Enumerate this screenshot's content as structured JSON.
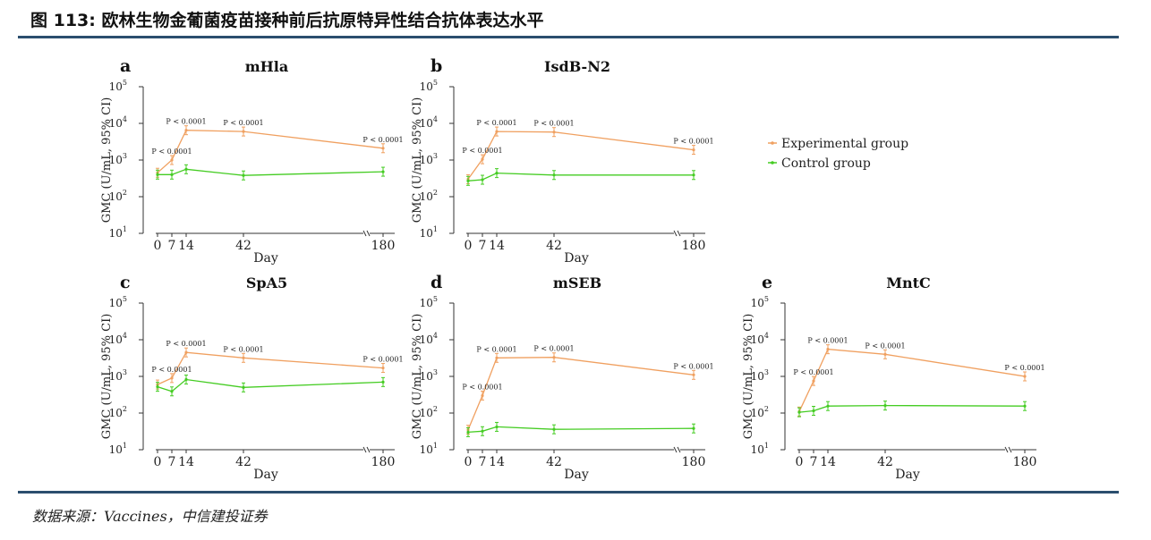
{
  "figure": {
    "title": "图 113: 欧林生物金葡菌疫苗接种前后抗原特异性结合抗体表达水平",
    "source": "数据来源：Vaccines，中信建投证券"
  },
  "legend": {
    "items": [
      {
        "name": "Experimental group",
        "color": "#f0a060"
      },
      {
        "name": "Control group",
        "color": "#44cc22"
      }
    ]
  },
  "chart_data": [
    {
      "type": "line",
      "letter": "a",
      "title": "mHla",
      "xlabel": "Day",
      "ylabel": "GMC (U/mL, 95% CI)",
      "yscale": "log",
      "ylim": [
        10,
        100000
      ],
      "x": [
        0,
        7,
        14,
        42,
        180
      ],
      "xticks": [
        "0",
        "7",
        "14",
        "42",
        "180"
      ],
      "yticks": [
        "10",
        "10",
        "10",
        "10",
        "10"
      ],
      "ytick_exponents": [
        "1",
        "2",
        "3",
        "4",
        "5"
      ],
      "series": [
        {
          "name": "Experimental group",
          "values": [
            450,
            1000,
            6500,
            6000,
            2100
          ]
        },
        {
          "name": "Control group",
          "values": [
            400,
            400,
            560,
            380,
            480
          ]
        }
      ],
      "annotations": [
        {
          "x": 7,
          "y": 1000,
          "text": "P < 0.0001"
        },
        {
          "x": 14,
          "y": 6500,
          "text": "P < 0.0001"
        },
        {
          "x": 42,
          "y": 6000,
          "text": "P < 0.0001"
        },
        {
          "x": 180,
          "y": 2100,
          "text": "P < 0.0001"
        }
      ]
    },
    {
      "type": "line",
      "letter": "b",
      "title": "IsdB-N2",
      "xlabel": "Day",
      "ylabel": "GMC (U/mL, 95% CI)",
      "yscale": "log",
      "ylim": [
        10,
        100000
      ],
      "x": [
        0,
        7,
        14,
        42,
        180
      ],
      "xticks": [
        "0",
        "7",
        "14",
        "42",
        "180"
      ],
      "yticks": [
        "10",
        "10",
        "10",
        "10",
        "10"
      ],
      "ytick_exponents": [
        "1",
        "2",
        "3",
        "4",
        "5"
      ],
      "series": [
        {
          "name": "Experimental group",
          "values": [
            300,
            1050,
            6000,
            5800,
            1900
          ]
        },
        {
          "name": "Control group",
          "values": [
            270,
            290,
            440,
            390,
            390
          ]
        }
      ],
      "annotations": [
        {
          "x": 7,
          "y": 1050,
          "text": "P < 0.0001"
        },
        {
          "x": 14,
          "y": 6000,
          "text": "P < 0.0001"
        },
        {
          "x": 42,
          "y": 5800,
          "text": "P < 0.0001"
        },
        {
          "x": 180,
          "y": 1900,
          "text": "P < 0.0001"
        }
      ]
    },
    {
      "type": "line",
      "letter": "c",
      "title": "SpA5",
      "xlabel": "Day",
      "ylabel": "GMC (U/mL, 95% CI)",
      "yscale": "log",
      "ylim": [
        10,
        100000
      ],
      "x": [
        0,
        7,
        14,
        42,
        180
      ],
      "xticks": [
        "0",
        "7",
        "14",
        "42",
        "180"
      ],
      "yticks": [
        "10",
        "10",
        "10",
        "10",
        "10"
      ],
      "ytick_exponents": [
        "1",
        "2",
        "3",
        "4",
        "5"
      ],
      "series": [
        {
          "name": "Experimental group",
          "values": [
            600,
            900,
            4500,
            3200,
            1700
          ]
        },
        {
          "name": "Control group",
          "values": [
            520,
            390,
            820,
            500,
            700
          ]
        }
      ],
      "annotations": [
        {
          "x": 7,
          "y": 900,
          "text": "P < 0.0001"
        },
        {
          "x": 14,
          "y": 4500,
          "text": "P < 0.0001"
        },
        {
          "x": 42,
          "y": 3200,
          "text": "P < 0.0001"
        },
        {
          "x": 180,
          "y": 1700,
          "text": "P < 0.0001"
        }
      ]
    },
    {
      "type": "line",
      "letter": "d",
      "title": "mSEB",
      "xlabel": "Day",
      "ylabel": "GMC (U/mL, 95% CI)",
      "yscale": "log",
      "ylim": [
        10,
        100000
      ],
      "x": [
        0,
        7,
        14,
        42,
        180
      ],
      "xticks": [
        "0",
        "7",
        "14",
        "42",
        "180"
      ],
      "yticks": [
        "10",
        "10",
        "10",
        "10",
        "10"
      ],
      "ytick_exponents": [
        "1",
        "2",
        "3",
        "4",
        "5"
      ],
      "series": [
        {
          "name": "Experimental group",
          "values": [
            35,
            300,
            3200,
            3300,
            1100
          ]
        },
        {
          "name": "Control group",
          "values": [
            30,
            32,
            42,
            36,
            38
          ]
        }
      ],
      "annotations": [
        {
          "x": 7,
          "y": 300,
          "text": "P < 0.0001"
        },
        {
          "x": 14,
          "y": 3200,
          "text": "P < 0.0001"
        },
        {
          "x": 42,
          "y": 3300,
          "text": "P < 0.0001"
        },
        {
          "x": 180,
          "y": 1100,
          "text": "P < 0.0001"
        }
      ]
    },
    {
      "type": "line",
      "letter": "e",
      "title": "MntC",
      "xlabel": "Day",
      "ylabel": "GMC (U/mL, 95% CI)",
      "yscale": "log",
      "ylim": [
        10,
        100000
      ],
      "x": [
        0,
        7,
        14,
        42,
        180
      ],
      "xticks": [
        "0",
        "7",
        "14",
        "42",
        "180"
      ],
      "yticks": [
        "10",
        "10",
        "10",
        "10",
        "10"
      ],
      "ytick_exponents": [
        "1",
        "2",
        "3",
        "4",
        "5"
      ],
      "series": [
        {
          "name": "Experimental group",
          "values": [
            110,
            750,
            5500,
            4000,
            1000
          ]
        },
        {
          "name": "Control group",
          "values": [
            105,
            115,
            155,
            160,
            155
          ]
        }
      ],
      "annotations": [
        {
          "x": 7,
          "y": 750,
          "text": "P < 0.0001"
        },
        {
          "x": 14,
          "y": 5500,
          "text": "P < 0.0001"
        },
        {
          "x": 42,
          "y": 4000,
          "text": "P < 0.0001"
        },
        {
          "x": 180,
          "y": 1000,
          "text": "P < 0.0001"
        }
      ]
    }
  ]
}
